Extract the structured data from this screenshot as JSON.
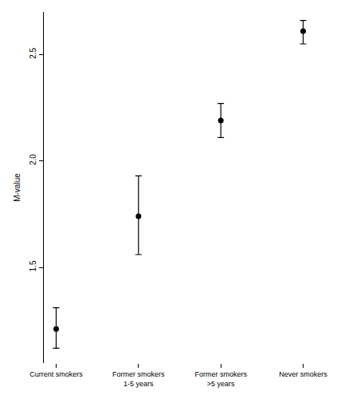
{
  "chart_data": {
    "type": "scatter",
    "y_label": "M-value",
    "categories": [
      "Current smokers",
      "Former smokers\n1-5 years",
      "Former smokers\n>5 years",
      "Never smokers"
    ],
    "values": [
      1.21,
      1.74,
      2.19,
      2.61
    ],
    "error_plus": [
      0.1,
      0.19,
      0.08,
      0.05
    ],
    "error_minus": [
      0.09,
      0.18,
      0.08,
      0.06
    ],
    "color": "#000000",
    "marker": "circle",
    "ylim": [
      1.05,
      2.7
    ],
    "yticks": [
      1.5,
      {
        "value": 2,
        "label": "2.0"
      },
      2.5
    ],
    "grid": false
  }
}
